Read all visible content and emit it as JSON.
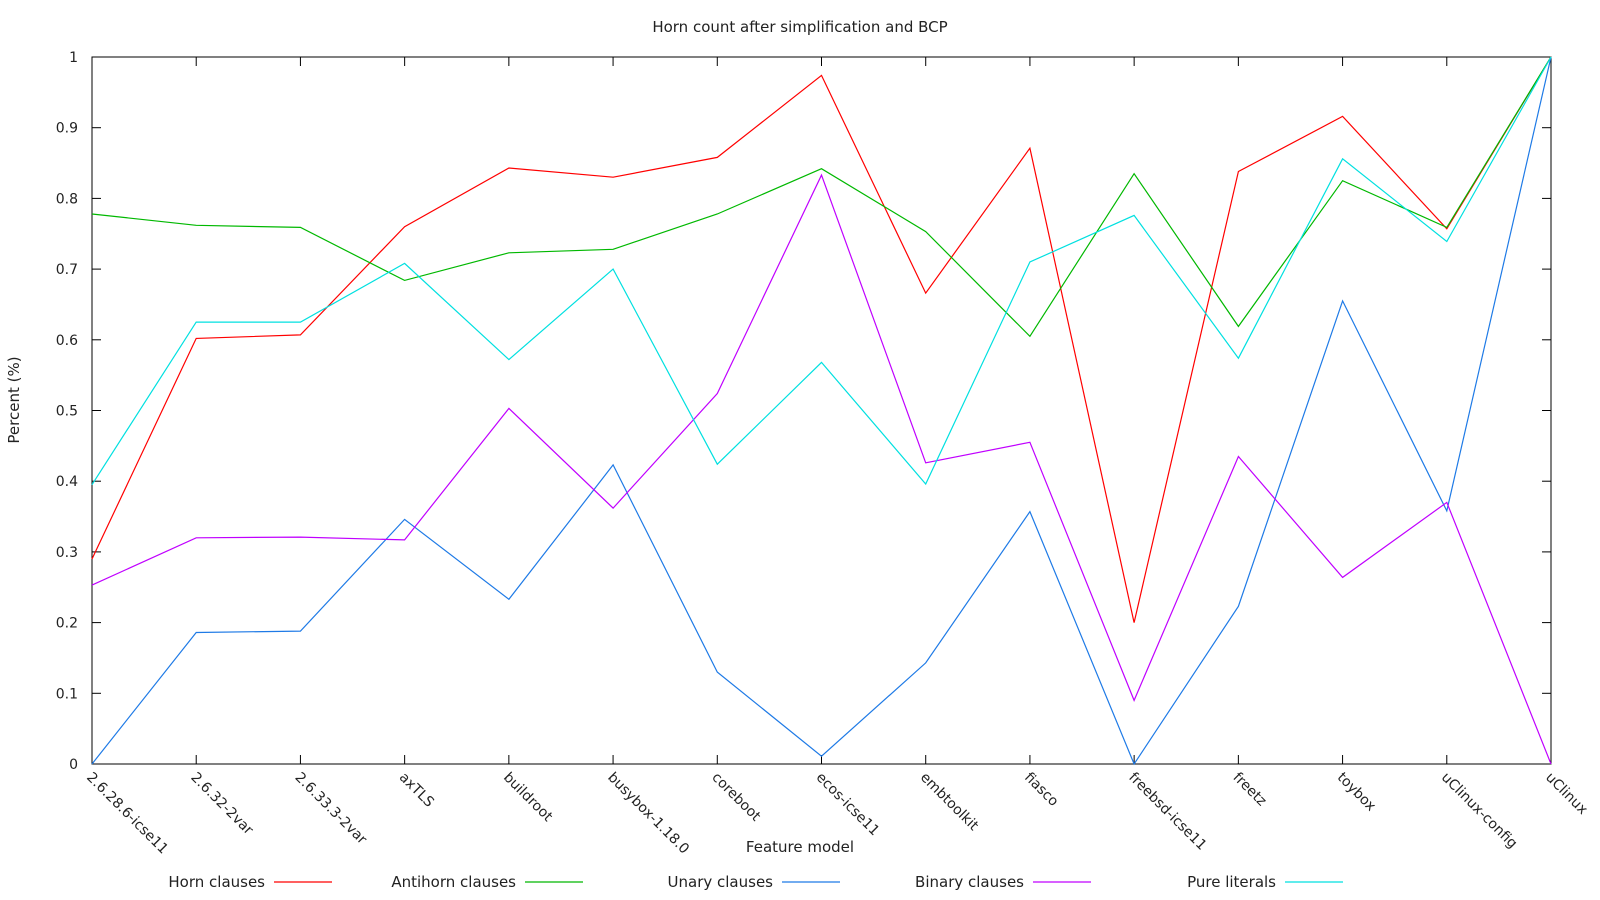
{
  "chart_data": {
    "type": "line",
    "title": "Horn count after simplification and BCP",
    "xlabel": "Feature model",
    "ylabel": "Percent (%)",
    "ylim": [
      0,
      1
    ],
    "yticks": [
      "0",
      "0.1",
      "0.2",
      "0.3",
      "0.4",
      "0.5",
      "0.6",
      "0.7",
      "0.8",
      "0.9",
      "1"
    ],
    "grid": false,
    "legend_position": "bottom",
    "categories": [
      "2.6.28.6-icse11",
      "2.6.32-2var",
      "2.6.33.3-2var",
      "axTLS",
      "buildroot",
      "busybox-1.18.0",
      "coreboot",
      "ecos-icse11",
      "embtoolkit",
      "fiasco",
      "freebsd-icse11",
      "freetz",
      "toybox",
      "uClinux-config",
      "uClinux"
    ],
    "series": [
      {
        "name": "Horn clauses",
        "color": "#ff0000",
        "values": [
          0.29,
          0.602,
          0.607,
          0.76,
          0.843,
          0.83,
          0.858,
          0.974,
          0.666,
          0.871,
          0.2,
          0.838,
          0.916,
          0.757,
          1.0
        ]
      },
      {
        "name": "Antihorn clauses",
        "color": "#00b800",
        "values": [
          0.778,
          0.762,
          0.759,
          0.684,
          0.723,
          0.728,
          0.778,
          0.842,
          0.753,
          0.605,
          0.835,
          0.619,
          0.825,
          0.759,
          1.0
        ]
      },
      {
        "name": "Unary clauses",
        "color": "#1e7ae6",
        "values": [
          0.0,
          0.186,
          0.188,
          0.346,
          0.233,
          0.423,
          0.13,
          0.011,
          0.143,
          0.357,
          0.0,
          0.223,
          0.655,
          0.358,
          1.0
        ]
      },
      {
        "name": "Binary clauses",
        "color": "#c000ff",
        "values": [
          0.253,
          0.32,
          0.321,
          0.317,
          0.503,
          0.362,
          0.524,
          0.833,
          0.426,
          0.455,
          0.09,
          0.435,
          0.264,
          0.37,
          0.0
        ]
      },
      {
        "name": "Pure literals",
        "color": "#00e0e0",
        "values": [
          0.395,
          0.625,
          0.625,
          0.708,
          0.572,
          0.7,
          0.424,
          0.568,
          0.396,
          0.71,
          0.776,
          0.574,
          0.856,
          0.739,
          1.0
        ]
      }
    ]
  }
}
